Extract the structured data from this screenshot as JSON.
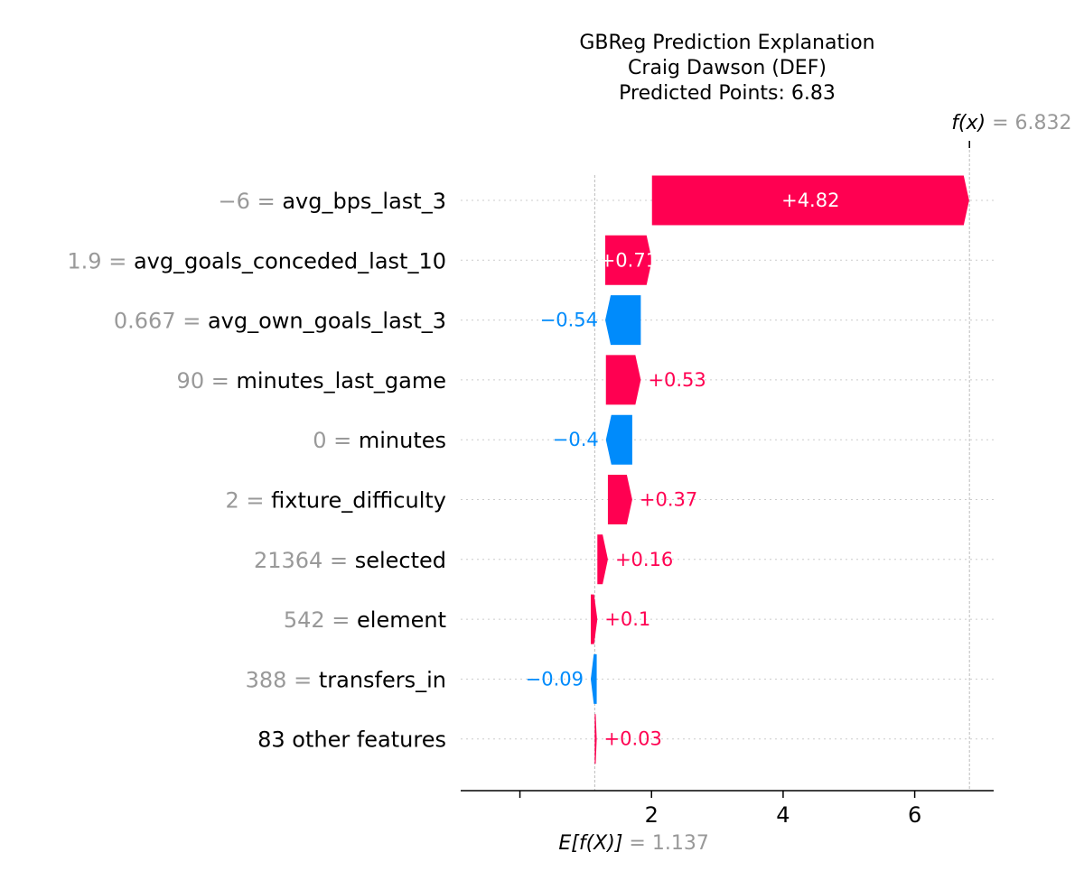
{
  "chart_data": {
    "type": "waterfall",
    "title_lines": [
      "GBReg Prediction Explanation",
      "Craig Dawson (DEF)",
      "Predicted Points: 6.83"
    ],
    "base_value": 1.137,
    "base_value_label": "1.137",
    "base_label": "E[f(X)]",
    "output_value": 6.832,
    "output_value_label": "6.832",
    "output_label": "f(x)",
    "xlim": [
      -0.9,
      7.2
    ],
    "xticks": [
      0,
      2,
      4,
      6
    ],
    "xtick_labels": [
      "",
      "2",
      "4",
      "6"
    ],
    "colors": {
      "positive": "#ff0051",
      "negative": "#008bfb"
    },
    "features": [
      {
        "value": "−6",
        "name": "avg_bps_last_3",
        "shap": 4.82,
        "label": "+4.82",
        "label_inside": true
      },
      {
        "value": "1.9",
        "name": "avg_goals_conceded_last_10",
        "shap": 0.71,
        "label": "+0.71",
        "label_inside": true
      },
      {
        "value": "0.667",
        "name": "avg_own_goals_last_3",
        "shap": -0.54,
        "label": "−0.54",
        "label_inside": false
      },
      {
        "value": "90",
        "name": "minutes_last_game",
        "shap": 0.53,
        "label": "+0.53",
        "label_inside": false
      },
      {
        "value": "0",
        "name": "minutes",
        "shap": -0.4,
        "label": "−0.4",
        "label_inside": false
      },
      {
        "value": "2",
        "name": "fixture_difficulty",
        "shap": 0.37,
        "label": "+0.37",
        "label_inside": false
      },
      {
        "value": "21364",
        "name": "selected",
        "shap": 0.16,
        "label": "+0.16",
        "label_inside": false
      },
      {
        "value": "542",
        "name": "element",
        "shap": 0.1,
        "label": "+0.1",
        "label_inside": false
      },
      {
        "value": "388",
        "name": "transfers_in",
        "shap": -0.09,
        "label": "−0.09",
        "label_inside": false
      },
      {
        "value": "",
        "name": "83 other features",
        "shap": 0.03,
        "label": "+0.03",
        "label_inside": false
      }
    ]
  }
}
